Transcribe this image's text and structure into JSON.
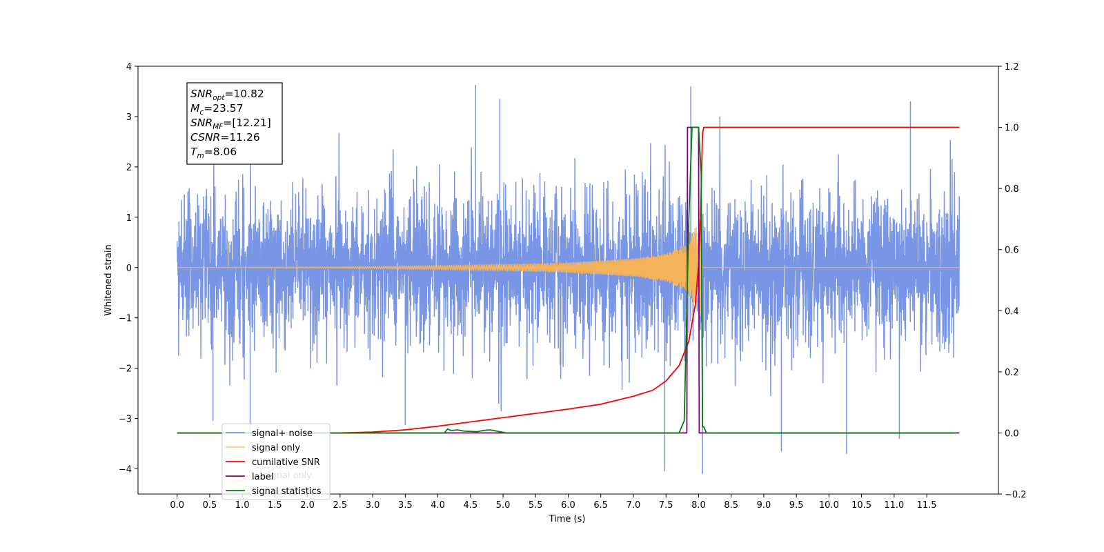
{
  "chart_data": {
    "type": "line",
    "xlabel": "Time (s)",
    "ylabel_left": "Whitened strain",
    "ylabel_right": "",
    "xlim": [
      -0.6,
      12.6
    ],
    "ylim_left": [
      -4.5,
      4.0
    ],
    "ylim_right": [
      -0.2,
      1.2
    ],
    "x_ticks": [
      "0.0",
      "0.5",
      "1.0",
      "1.5",
      "2.0",
      "2.5",
      "3.0",
      "3.5",
      "4.0",
      "4.5",
      "5.0",
      "5.5",
      "6.0",
      "6.5",
      "7.0",
      "7.5",
      "8.0",
      "8.5",
      "9.0",
      "9.5",
      "10.0",
      "10.5",
      "11.0",
      "11.5"
    ],
    "y_ticks_left": [
      "4",
      "3",
      "2",
      "1",
      "0",
      "−1",
      "−2",
      "−3",
      "−4"
    ],
    "y_ticks_right": [
      "1.2",
      "1.0",
      "0.8",
      "0.6",
      "0.4",
      "0.2",
      "0.0",
      "−0.2"
    ],
    "grid": false,
    "legend_position": "lower-left",
    "annotation": [
      {
        "base": "SNR",
        "sub": "opt",
        "value": "=10.82"
      },
      {
        "base": "M",
        "sub": "c",
        "value": "=23.57"
      },
      {
        "base": "SNR",
        "sub": "MF",
        "value": "=[12.21]"
      },
      {
        "base": "CSNR",
        "sub": "",
        "value": "=11.26"
      },
      {
        "base": "T",
        "sub": "m",
        "value": "=8.06"
      }
    ],
    "series": [
      {
        "name": "signal+ noise",
        "axis": "left",
        "color": "#7895e6",
        "x_range": [
          0.0,
          12.0
        ],
        "typical_amplitude": 1.1,
        "max": 3.63,
        "min": -4.1,
        "points": [
          [
            0.55,
            -3.05
          ],
          [
            1.12,
            -3.25
          ],
          [
            3.5,
            -3.13
          ],
          [
            4.58,
            3.63
          ],
          [
            4.95,
            3.35
          ],
          [
            7.48,
            -4.05
          ],
          [
            7.88,
            3.6
          ],
          [
            8.06,
            -4.1
          ],
          [
            9.27,
            -3.65
          ],
          [
            10.27,
            -3.7
          ],
          [
            11.08,
            -3.4
          ],
          [
            11.25,
            3.3
          ]
        ]
      },
      {
        "name": "signal only",
        "axis": "left",
        "color": "#f5b45a",
        "description_points": [
          [
            0,
            0
          ],
          [
            3.0,
            0.02
          ],
          [
            5.0,
            0.06
          ],
          [
            6.0,
            0.1
          ],
          [
            7.0,
            0.18
          ],
          [
            7.5,
            0.28
          ],
          [
            7.8,
            0.45
          ],
          [
            7.95,
            0.8
          ],
          [
            8.03,
            1.0
          ],
          [
            8.06,
            0.0
          ],
          [
            12.0,
            0.0
          ]
        ]
      },
      {
        "name": "cumilative SNR",
        "axis": "right",
        "color": "#ff0000",
        "x": [
          0.0,
          1.0,
          2.0,
          2.5,
          3.0,
          3.5,
          4.0,
          4.5,
          5.0,
          5.5,
          6.0,
          6.5,
          7.0,
          7.3,
          7.5,
          7.7,
          7.85,
          7.95,
          8.0,
          8.03,
          8.06,
          8.08,
          12.0
        ],
        "values": [
          0.0,
          0.0,
          0.0,
          0.0,
          0.003,
          0.01,
          0.022,
          0.036,
          0.05,
          0.064,
          0.078,
          0.094,
          0.12,
          0.14,
          0.17,
          0.22,
          0.3,
          0.42,
          0.55,
          0.7,
          0.98,
          1.0,
          1.0
        ]
      },
      {
        "name": "label",
        "axis": "right",
        "color": "#800080",
        "x": [
          0.0,
          7.82,
          7.83,
          8.0,
          8.01,
          12.0
        ],
        "values": [
          0,
          0,
          1,
          1,
          0,
          0
        ]
      },
      {
        "name": "signal statistics",
        "axis": "right",
        "color": "#008000",
        "x": [
          0.0,
          4.0,
          4.1,
          4.15,
          4.2,
          4.3,
          4.4,
          4.6,
          4.7,
          4.8,
          4.9,
          5.0,
          5.05,
          7.7,
          7.78,
          7.85,
          7.9,
          7.95,
          8.0,
          8.04,
          8.06,
          8.08,
          8.12,
          8.15,
          11.95
        ],
        "values": [
          0,
          0,
          0,
          0.013,
          0.008,
          0.01,
          0.006,
          0.004,
          0.008,
          0.01,
          0.006,
          0.002,
          0.0,
          0.0,
          0.04,
          0.7,
          1.0,
          1.0,
          1.0,
          0.85,
          0.02,
          0.02,
          0.0,
          0.0,
          0.0
        ]
      }
    ],
    "legend_extra_text": "signal only"
  }
}
